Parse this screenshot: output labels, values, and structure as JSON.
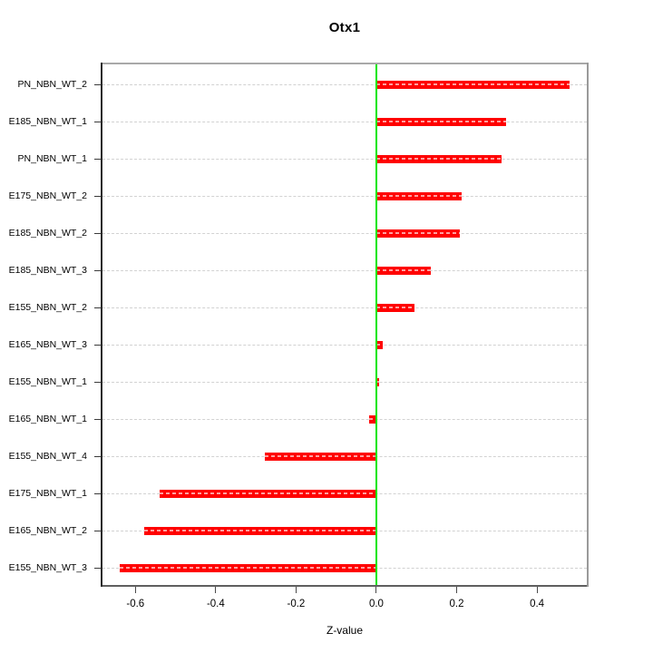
{
  "title": "Otx1",
  "chart_data": {
    "type": "bar",
    "orientation": "horizontal",
    "title": "Otx1",
    "xlabel": "Z-value",
    "ylabel": "",
    "categories": [
      "PN_NBN_WT_2",
      "E185_NBN_WT_1",
      "PN_NBN_WT_1",
      "E175_NBN_WT_2",
      "E185_NBN_WT_2",
      "E185_NBN_WT_3",
      "E155_NBN_WT_2",
      "E165_NBN_WT_3",
      "E155_NBN_WT_1",
      "E165_NBN_WT_1",
      "E155_NBN_WT_4",
      "E175_NBN_WT_1",
      "E165_NBN_WT_2",
      "E155_NBN_WT_3"
    ],
    "values": [
      0.48,
      0.323,
      0.312,
      0.212,
      0.208,
      0.135,
      0.095,
      0.015,
      0.005,
      -0.017,
      -0.278,
      -0.54,
      -0.578,
      -0.64
    ],
    "xlim": [
      -0.682,
      0.524
    ],
    "x_ticks": {
      "values": [
        -0.6,
        -0.4,
        -0.2,
        0.0,
        0.2,
        0.4
      ],
      "labels": [
        "-0.6",
        "-0.4",
        "-0.2",
        "0.0",
        "0.2",
        "0.4"
      ]
    },
    "reference_line_x": 0,
    "grid": "horizontal-dashed",
    "legend": "none",
    "colors": {
      "bar": "#ff0000",
      "reference_line": "#00e600",
      "gridline": "#d2d2d2",
      "text": "#000000"
    }
  }
}
